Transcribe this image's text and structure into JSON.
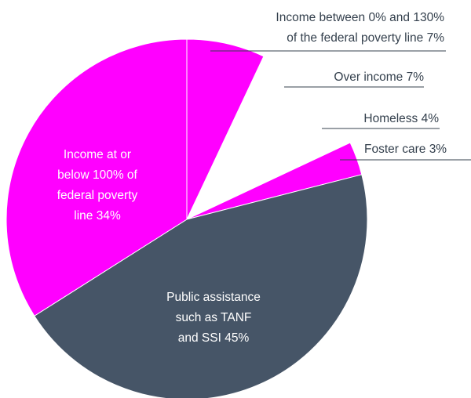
{
  "chart_data": {
    "type": "pie",
    "title": "",
    "slices": [
      {
        "name": "Income between 0% and 130% of the federal poverty line",
        "value": 7,
        "color": "#ff00ff",
        "label_lines": [
          "Income between 0% and 130%",
          "of the federal poverty line 7%"
        ]
      },
      {
        "name": "Over income",
        "value": 7,
        "color": "#ffffff",
        "label_lines": [
          "Over income 7%"
        ]
      },
      {
        "name": "Homeless",
        "value": 4,
        "color": "#ffffff",
        "label_lines": [
          "Homeless 4%"
        ]
      },
      {
        "name": "Foster care",
        "value": 3,
        "color": "#ff00ff",
        "label_lines": [
          "Foster care 3%"
        ]
      },
      {
        "name": "Public assistance such as TANF and SSI",
        "value": 45,
        "color": "#465567",
        "label_lines": [
          "Public assistance",
          "such as TANF",
          "and SSI 45%"
        ]
      },
      {
        "name": "Income at or below 100% of federal poverty line",
        "value": 34,
        "color": "#ff00ff",
        "label_lines": [
          "Income at or",
          "below 100% of",
          "federal poverty",
          "line 34%"
        ]
      }
    ]
  }
}
